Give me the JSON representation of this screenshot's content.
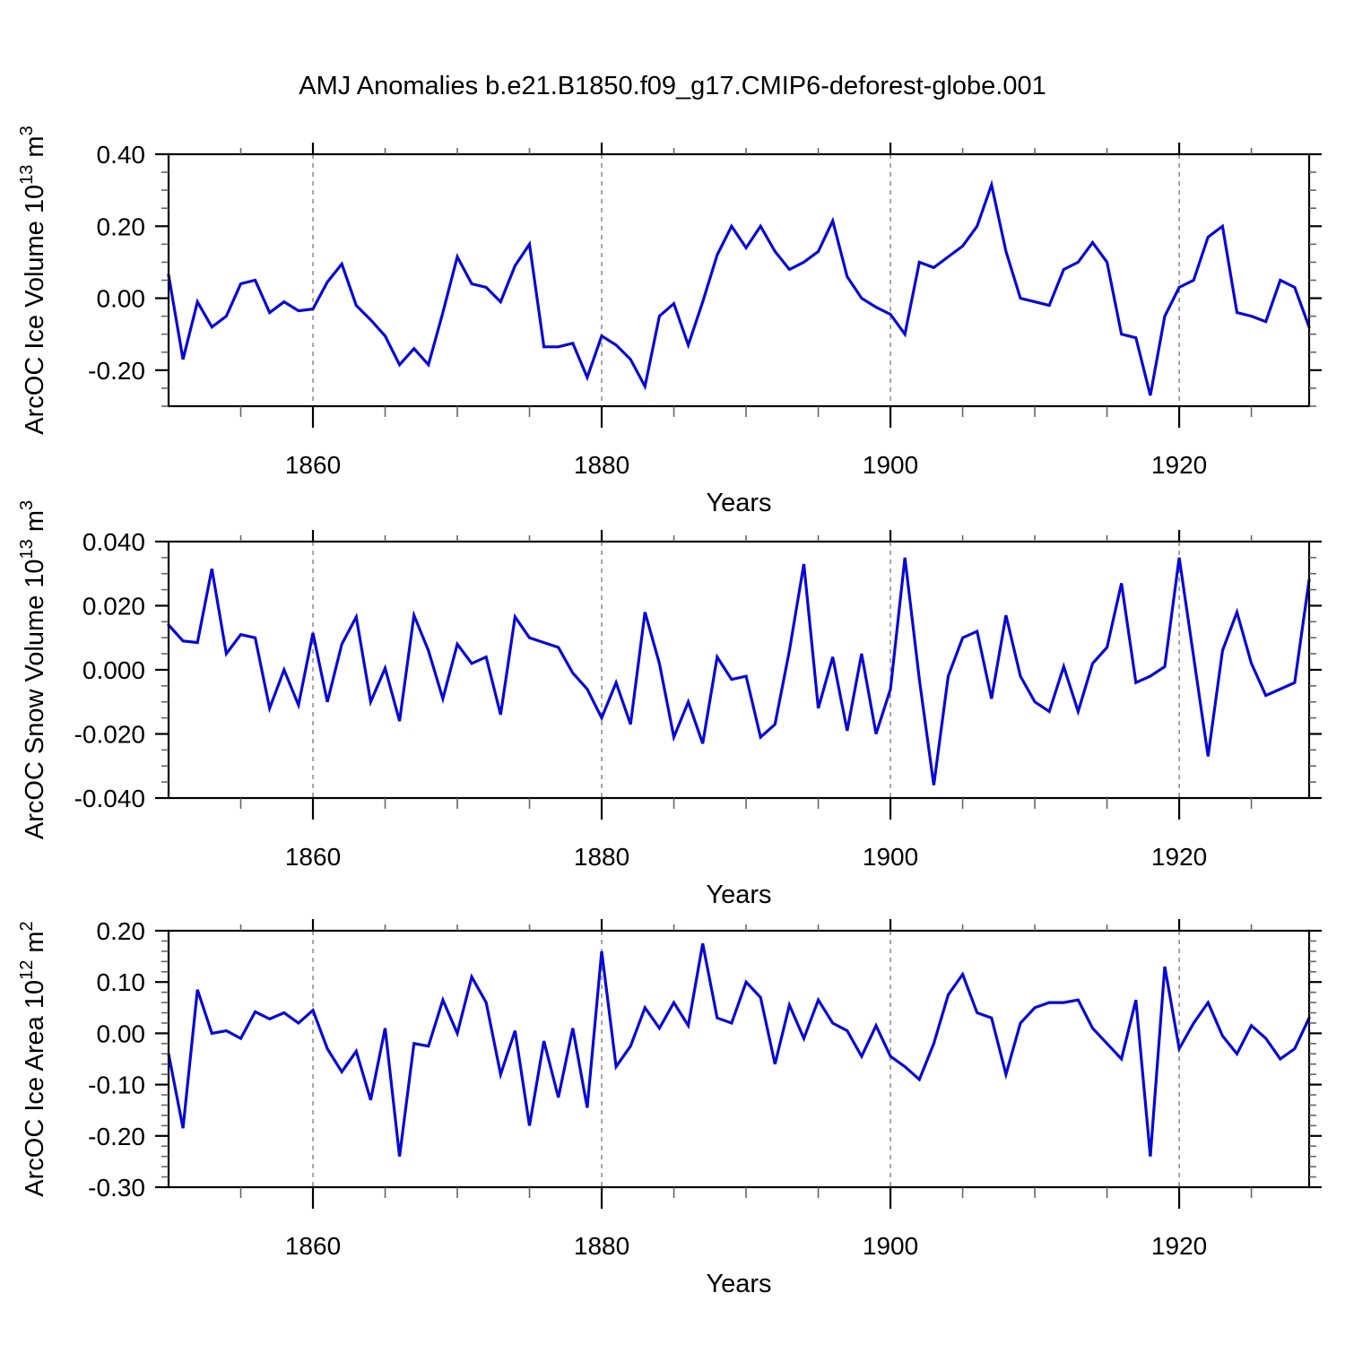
{
  "title": "AMJ Anomalies b.e21.B1850.f09_g17.CMIP6-deforest-globe.001",
  "line_color": "#0808d8",
  "gridline_color": "#787878",
  "chart_data": [
    {
      "type": "line",
      "xlabel": "Years",
      "ylabel_parts": [
        {
          "t": "ArcOC Ice Volume 10"
        },
        {
          "t": "13",
          "sup": true
        },
        {
          "t": " m"
        },
        {
          "t": "3",
          "sup": true
        }
      ],
      "ylim": [
        -0.3,
        0.4
      ],
      "ytick_major_step": 0.2,
      "ytick_minor_step": 0.05,
      "ytick_labels": [
        {
          "v": 0.4,
          "label": "0.40"
        },
        {
          "v": 0.2,
          "label": "0.20"
        },
        {
          "v": 0.0,
          "label": "0.00"
        },
        {
          "v": -0.2,
          "label": "-0.20"
        }
      ],
      "xlim": [
        1850,
        1929
      ],
      "xtick_major": [
        {
          "v": 1860,
          "label": "1860"
        },
        {
          "v": 1880,
          "label": "1880"
        },
        {
          "v": 1900,
          "label": "1900"
        },
        {
          "v": 1920,
          "label": "1920"
        }
      ],
      "xtick_minor": [
        1855,
        1865,
        1870,
        1875,
        1885,
        1890,
        1895,
        1905,
        1910,
        1915,
        1925
      ],
      "grid_at_major": true,
      "x": [
        1850,
        1851,
        1852,
        1853,
        1854,
        1855,
        1856,
        1857,
        1858,
        1859,
        1860,
        1861,
        1862,
        1863,
        1864,
        1865,
        1866,
        1867,
        1868,
        1869,
        1870,
        1871,
        1872,
        1873,
        1874,
        1875,
        1876,
        1877,
        1878,
        1879,
        1880,
        1881,
        1882,
        1883,
        1884,
        1885,
        1886,
        1887,
        1888,
        1889,
        1890,
        1891,
        1892,
        1893,
        1894,
        1895,
        1896,
        1897,
        1898,
        1899,
        1900,
        1901,
        1902,
        1903,
        1904,
        1905,
        1906,
        1907,
        1908,
        1909,
        1910,
        1911,
        1912,
        1913,
        1914,
        1915,
        1916,
        1917,
        1918,
        1919,
        1920,
        1921,
        1922,
        1923,
        1924,
        1925,
        1926,
        1927,
        1928,
        1929
      ],
      "values": [
        0.065,
        -0.17,
        -0.01,
        -0.08,
        -0.05,
        0.04,
        0.05,
        -0.04,
        -0.01,
        -0.035,
        -0.03,
        0.045,
        0.095,
        -0.02,
        -0.06,
        -0.105,
        -0.185,
        -0.14,
        -0.185,
        -0.04,
        0.115,
        0.04,
        0.03,
        -0.01,
        0.09,
        0.15,
        -0.135,
        -0.135,
        -0.125,
        -0.22,
        -0.105,
        -0.13,
        -0.17,
        -0.245,
        -0.05,
        -0.015,
        -0.13,
        -0.01,
        0.12,
        0.2,
        0.14,
        0.2,
        0.13,
        0.08,
        0.1,
        0.13,
        0.215,
        0.06,
        0.0,
        -0.025,
        -0.045,
        -0.1,
        0.1,
        0.085,
        0.115,
        0.145,
        0.2,
        0.315,
        0.13,
        0.0,
        -0.01,
        -0.02,
        0.08,
        0.1,
        0.155,
        0.1,
        -0.1,
        -0.11,
        -0.27,
        -0.05,
        0.03,
        0.05,
        0.17,
        0.2,
        -0.04,
        -0.05,
        -0.065,
        0.05,
        0.03,
        -0.08
      ]
    },
    {
      "type": "line",
      "xlabel": "Years",
      "ylabel_parts": [
        {
          "t": "ArcOC Snow Volume 10"
        },
        {
          "t": "13",
          "sup": true
        },
        {
          "t": " m"
        },
        {
          "t": "3",
          "sup": true
        }
      ],
      "ylim": [
        -0.04,
        0.04
      ],
      "ytick_major_step": 0.02,
      "ytick_minor_step": 0.005,
      "ytick_labels": [
        {
          "v": 0.04,
          "label": "0.040"
        },
        {
          "v": 0.02,
          "label": "0.020"
        },
        {
          "v": 0.0,
          "label": "0.000"
        },
        {
          "v": -0.02,
          "label": "-0.020"
        },
        {
          "v": -0.04,
          "label": "-0.040"
        }
      ],
      "xlim": [
        1850,
        1929
      ],
      "xtick_major": [
        {
          "v": 1860,
          "label": "1860"
        },
        {
          "v": 1880,
          "label": "1880"
        },
        {
          "v": 1900,
          "label": "1900"
        },
        {
          "v": 1920,
          "label": "1920"
        }
      ],
      "xtick_minor": [
        1855,
        1865,
        1870,
        1875,
        1885,
        1890,
        1895,
        1905,
        1910,
        1915,
        1925
      ],
      "grid_at_major": true,
      "x": [
        1850,
        1851,
        1852,
        1853,
        1854,
        1855,
        1856,
        1857,
        1858,
        1859,
        1860,
        1861,
        1862,
        1863,
        1864,
        1865,
        1866,
        1867,
        1868,
        1869,
        1870,
        1871,
        1872,
        1873,
        1874,
        1875,
        1876,
        1877,
        1878,
        1879,
        1880,
        1881,
        1882,
        1883,
        1884,
        1885,
        1886,
        1887,
        1888,
        1889,
        1890,
        1891,
        1892,
        1893,
        1894,
        1895,
        1896,
        1897,
        1898,
        1899,
        1900,
        1901,
        1902,
        1903,
        1904,
        1905,
        1906,
        1907,
        1908,
        1909,
        1910,
        1911,
        1912,
        1913,
        1914,
        1915,
        1916,
        1917,
        1918,
        1919,
        1920,
        1921,
        1922,
        1923,
        1924,
        1925,
        1926,
        1927,
        1928,
        1929
      ],
      "values": [
        0.014,
        0.009,
        0.0085,
        0.0315,
        0.005,
        0.011,
        0.01,
        -0.012,
        0.0,
        -0.011,
        0.0115,
        -0.01,
        0.008,
        0.0165,
        -0.01,
        0.0005,
        -0.016,
        0.017,
        0.006,
        -0.009,
        0.008,
        0.002,
        0.004,
        -0.014,
        0.0165,
        0.01,
        0.0085,
        0.007,
        -0.001,
        -0.006,
        -0.015,
        -0.004,
        -0.017,
        0.018,
        0.002,
        -0.021,
        -0.01,
        -0.023,
        0.004,
        -0.003,
        -0.002,
        -0.021,
        -0.017,
        0.006,
        0.033,
        -0.012,
        0.004,
        -0.019,
        0.005,
        -0.02,
        -0.006,
        0.035,
        -0.003,
        -0.036,
        -0.002,
        0.01,
        0.012,
        -0.009,
        0.017,
        -0.002,
        -0.01,
        -0.013,
        0.001,
        -0.013,
        0.002,
        0.007,
        0.027,
        -0.004,
        -0.002,
        0.001,
        0.035,
        0.004,
        -0.027,
        0.006,
        0.018,
        0.002,
        -0.008,
        -0.006,
        -0.004,
        0.028
      ]
    },
    {
      "type": "line",
      "xlabel": "Years",
      "ylabel_parts": [
        {
          "t": "ArcOC Ice Area 10"
        },
        {
          "t": "12",
          "sup": true
        },
        {
          "t": " m"
        },
        {
          "t": "2",
          "sup": true
        }
      ],
      "ylim": [
        -0.3,
        0.2
      ],
      "ytick_major_step": 0.1,
      "ytick_minor_step": 0.02,
      "ytick_labels": [
        {
          "v": 0.2,
          "label": "0.20"
        },
        {
          "v": 0.1,
          "label": "0.10"
        },
        {
          "v": 0.0,
          "label": "0.00"
        },
        {
          "v": -0.1,
          "label": "-0.10"
        },
        {
          "v": -0.2,
          "label": "-0.20"
        },
        {
          "v": -0.3,
          "label": "-0.30"
        }
      ],
      "xlim": [
        1850,
        1929
      ],
      "xtick_major": [
        {
          "v": 1860,
          "label": "1860"
        },
        {
          "v": 1880,
          "label": "1880"
        },
        {
          "v": 1900,
          "label": "1900"
        },
        {
          "v": 1920,
          "label": "1920"
        }
      ],
      "xtick_minor": [
        1855,
        1865,
        1870,
        1875,
        1885,
        1890,
        1895,
        1905,
        1910,
        1915,
        1925
      ],
      "grid_at_major": true,
      "x": [
        1850,
        1851,
        1852,
        1853,
        1854,
        1855,
        1856,
        1857,
        1858,
        1859,
        1860,
        1861,
        1862,
        1863,
        1864,
        1865,
        1866,
        1867,
        1868,
        1869,
        1870,
        1871,
        1872,
        1873,
        1874,
        1875,
        1876,
        1877,
        1878,
        1879,
        1880,
        1881,
        1882,
        1883,
        1884,
        1885,
        1886,
        1887,
        1888,
        1889,
        1890,
        1891,
        1892,
        1893,
        1894,
        1895,
        1896,
        1897,
        1898,
        1899,
        1900,
        1901,
        1902,
        1903,
        1904,
        1905,
        1906,
        1907,
        1908,
        1909,
        1910,
        1911,
        1912,
        1913,
        1914,
        1915,
        1916,
        1917,
        1918,
        1919,
        1920,
        1921,
        1922,
        1923,
        1924,
        1925,
        1926,
        1927,
        1928,
        1929
      ],
      "values": [
        -0.04,
        -0.185,
        0.085,
        0.0,
        0.005,
        -0.01,
        0.042,
        0.028,
        0.04,
        0.02,
        0.045,
        -0.03,
        -0.075,
        -0.035,
        -0.13,
        0.01,
        -0.24,
        -0.02,
        -0.025,
        0.065,
        0.0,
        0.11,
        0.06,
        -0.08,
        0.005,
        -0.18,
        -0.015,
        -0.125,
        0.01,
        -0.145,
        0.16,
        -0.065,
        -0.025,
        0.05,
        0.01,
        0.06,
        0.015,
        0.175,
        0.03,
        0.02,
        0.1,
        0.07,
        -0.06,
        0.055,
        -0.01,
        0.065,
        0.02,
        0.005,
        -0.045,
        0.015,
        -0.045,
        -0.065,
        -0.09,
        -0.02,
        0.075,
        0.115,
        0.04,
        0.03,
        -0.08,
        0.02,
        0.05,
        0.06,
        0.06,
        0.065,
        0.01,
        -0.02,
        -0.05,
        0.065,
        -0.24,
        0.13,
        -0.03,
        0.02,
        0.06,
        -0.005,
        -0.04,
        0.015,
        -0.01,
        -0.05,
        -0.03,
        0.03
      ]
    }
  ]
}
